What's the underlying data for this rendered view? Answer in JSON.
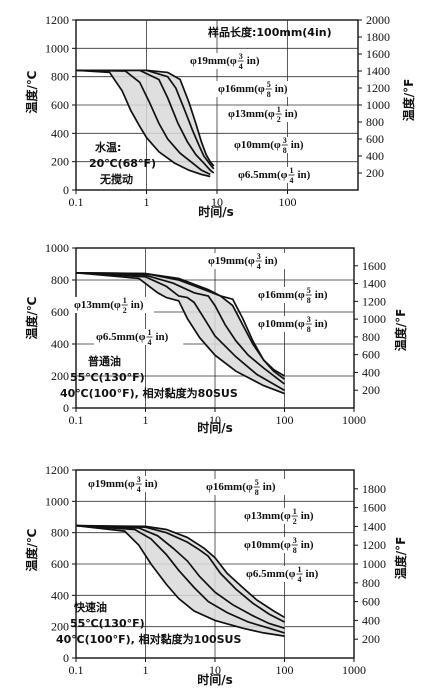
{
  "chart_data": [
    {
      "type": "line",
      "quench": "water",
      "xlabel": "时间/s",
      "ylabel_left": "温度/℃",
      "ylabel_right": "温度/°F",
      "xscale": "log",
      "xlim": [
        0.1,
        1000
      ],
      "ylim": [
        0,
        1200
      ],
      "y2lim": [
        0,
        2000
      ],
      "x_ticks": [
        "0.1",
        "1",
        "10",
        "100"
      ],
      "y_ticks": [
        "0",
        "200",
        "400",
        "600",
        "800",
        "1000",
        "1200"
      ],
      "y2_ticks": [
        "200",
        "400",
        "600",
        "800",
        "1000",
        "1200",
        "1400",
        "1600",
        "1800",
        "2000"
      ],
      "grid": true,
      "annotations": [
        "样品长度:100mm(4in)",
        "水温:",
        "20℃(68°F)",
        "无搅动"
      ],
      "series": [
        {
          "name": "φ19mm(φ3/4in)",
          "label": {
            "main": "φ19mm(φ",
            "num": "3",
            "den": "4",
            "tail": "in)"
          },
          "x": [
            0.1,
            1,
            2,
            3,
            4,
            5,
            6,
            7,
            8,
            9
          ],
          "y": [
            845,
            845,
            830,
            780,
            620,
            470,
            340,
            250,
            200,
            170
          ]
        },
        {
          "name": "φ16mm(φ5/8in)",
          "label": {
            "main": "φ16mm(φ",
            "num": "5",
            "den": "8",
            "tail": "in)"
          },
          "x": [
            0.1,
            1,
            2,
            2.6,
            3.5,
            4.5,
            5.5,
            6.5,
            8,
            9
          ],
          "y": [
            845,
            845,
            800,
            720,
            560,
            420,
            320,
            240,
            180,
            150
          ]
        },
        {
          "name": "φ13mm(φ1/2in)",
          "label": {
            "main": "φ13mm(φ",
            "num": "1",
            "den": "2",
            "tail": "in)"
          },
          "x": [
            0.1,
            0.8,
            1.5,
            2,
            2.8,
            3.8,
            5,
            6.5,
            8,
            9
          ],
          "y": [
            845,
            845,
            780,
            650,
            470,
            340,
            250,
            190,
            140,
            120
          ]
        },
        {
          "name": "φ10mm(φ3/8in)",
          "label": {
            "main": "φ10mm(φ",
            "num": "3",
            "den": "8",
            "tail": "in)"
          },
          "x": [
            0.1,
            0.5,
            0.8,
            1.1,
            1.5,
            2,
            3,
            4.5,
            6,
            8
          ],
          "y": [
            845,
            840,
            760,
            620,
            470,
            360,
            260,
            190,
            140,
            110
          ]
        },
        {
          "name": "φ6.5mm(φ1/4in)",
          "label": {
            "main": "φ6.5mm(φ",
            "num": "1",
            "den": "4",
            "tail": "in)"
          },
          "x": [
            0.1,
            0.3,
            0.45,
            0.6,
            0.8,
            1,
            1.5,
            2.5,
            4,
            6,
            8
          ],
          "y": [
            845,
            830,
            700,
            560,
            450,
            370,
            270,
            190,
            140,
            110,
            95
          ]
        }
      ]
    },
    {
      "type": "line",
      "quench": "normal-oil",
      "xlabel": "时间/s",
      "ylabel_left": "温度/℃",
      "ylabel_right": "温度/°F",
      "xscale": "log",
      "xlim": [
        0.1,
        1000
      ],
      "ylim": [
        0,
        1000
      ],
      "y2lim": [
        0,
        1800
      ],
      "x_ticks": [
        "0.1",
        "1",
        "10",
        "100",
        "1000"
      ],
      "y_ticks": [
        "0",
        "200",
        "400",
        "600",
        "800",
        "1000"
      ],
      "y2_ticks": [
        "200",
        "400",
        "600",
        "800",
        "1000",
        "1200",
        "1400",
        "1600"
      ],
      "grid": true,
      "annotations": [
        "普通油",
        "55℃(130°F)",
        "40℃(100°F), 相对黏度为80SUS"
      ],
      "series": [
        {
          "name": "φ19mm(φ3/4in)",
          "label": {
            "main": "φ19mm(φ",
            "num": "3",
            "den": "4",
            "tail": "in)"
          },
          "x": [
            0.1,
            1,
            3,
            8,
            12,
            18,
            25,
            35,
            50,
            70,
            100
          ],
          "y": [
            845,
            840,
            810,
            740,
            700,
            640,
            520,
            400,
            300,
            240,
            200
          ]
        },
        {
          "name": "φ16mm(φ5/8in)",
          "label": {
            "main": "φ16mm(φ",
            "num": "5",
            "den": "8",
            "tail": "in)"
          },
          "x": [
            0.1,
            1,
            3,
            8,
            12,
            18,
            25,
            35,
            50,
            70,
            100
          ],
          "y": [
            845,
            840,
            800,
            730,
            700,
            680,
            560,
            420,
            300,
            230,
            180
          ]
        },
        {
          "name": "φ13mm(φ1/2in)",
          "label": {
            "main": "φ13mm(φ",
            "num": "1",
            "den": "2",
            "tail": "in)"
          },
          "x": [
            0.1,
            1,
            2.5,
            5,
            8,
            10,
            14,
            20,
            30,
            50,
            100
          ],
          "y": [
            845,
            830,
            780,
            720,
            700,
            640,
            520,
            420,
            330,
            250,
            150
          ]
        },
        {
          "name": "φ10mm(φ3/8in)",
          "label": {
            "main": "φ10mm(φ",
            "num": "3",
            "den": "8",
            "tail": "in)"
          },
          "x": [
            0.1,
            1,
            2,
            3,
            4,
            5,
            7,
            10,
            20,
            40,
            100
          ],
          "y": [
            845,
            820,
            760,
            700,
            690,
            660,
            560,
            450,
            320,
            210,
            110
          ]
        },
        {
          "name": "φ6.5mm(φ1/4in)",
          "label": {
            "main": "φ6.5mm(φ",
            "num": "1",
            "den": "4",
            "tail": "in)"
          },
          "x": [
            0.1,
            0.8,
            1.5,
            2,
            3,
            4,
            6,
            10,
            20,
            50,
            100
          ],
          "y": [
            845,
            810,
            720,
            690,
            670,
            560,
            440,
            330,
            230,
            140,
            90
          ]
        }
      ]
    },
    {
      "type": "line",
      "quench": "fast-oil",
      "xlabel": "时间/s",
      "ylabel_left": "温度/℃",
      "ylabel_right": "温度/°F",
      "xscale": "log",
      "xlim": [
        0.1,
        1000
      ],
      "ylim": [
        0,
        1200
      ],
      "y2lim": [
        0,
        2000
      ],
      "x_ticks": [
        "0.1",
        "1",
        "10",
        "100",
        "1000"
      ],
      "y_ticks": [
        "0",
        "200",
        "400",
        "600",
        "800",
        "1000",
        "1200"
      ],
      "y2_ticks": [
        "200",
        "400",
        "600",
        "800",
        "1000",
        "1200",
        "1400",
        "1600",
        "1800"
      ],
      "grid": true,
      "annotations": [
        "快速油",
        "55℃(130°F)",
        "40℃(100°F), 相对黏度为100SUS"
      ],
      "series": [
        {
          "name": "φ19mm(φ3/4in)",
          "label": {
            "main": "φ19mm(φ",
            "num": "3",
            "den": "4",
            "tail": "in)"
          },
          "x": [
            0.1,
            1,
            2,
            4,
            7,
            10,
            15,
            25,
            40,
            70,
            100
          ],
          "y": [
            845,
            840,
            820,
            770,
            700,
            640,
            540,
            450,
            370,
            300,
            260
          ]
        },
        {
          "name": "φ16mm(φ5/8in)",
          "label": {
            "main": "φ16mm(φ",
            "num": "5",
            "den": "8",
            "tail": "in)"
          },
          "x": [
            0.1,
            1,
            2,
            4,
            6,
            8,
            12,
            20,
            35,
            60,
            100
          ],
          "y": [
            845,
            835,
            800,
            740,
            690,
            650,
            540,
            440,
            350,
            280,
            230
          ]
        },
        {
          "name": "φ13mm(φ1/2in)",
          "label": {
            "main": "φ13mm(φ",
            "num": "1",
            "den": "2",
            "tail": "in)"
          },
          "x": [
            0.1,
            0.8,
            1.5,
            2.5,
            4,
            6,
            10,
            18,
            35,
            60,
            100
          ],
          "y": [
            845,
            830,
            780,
            700,
            620,
            520,
            420,
            340,
            270,
            220,
            190
          ]
        },
        {
          "name": "φ10mm(φ3/8in)",
          "label": {
            "main": "φ10mm(φ",
            "num": "3",
            "den": "8",
            "tail": "in)"
          },
          "x": [
            0.1,
            0.7,
            1.2,
            2,
            3,
            5,
            8,
            15,
            30,
            60,
            100
          ],
          "y": [
            845,
            820,
            760,
            660,
            560,
            450,
            360,
            290,
            230,
            190,
            160
          ]
        },
        {
          "name": "φ6.5mm(φ1/4in)",
          "label": {
            "main": "φ6.5mm(φ",
            "num": "1",
            "den": "4",
            "tail": "in)"
          },
          "x": [
            0.1,
            0.5,
            0.8,
            1.2,
            2,
            3,
            5,
            10,
            25,
            50,
            100
          ],
          "y": [
            845,
            810,
            720,
            600,
            470,
            380,
            300,
            240,
            190,
            160,
            140
          ]
        }
      ]
    }
  ]
}
